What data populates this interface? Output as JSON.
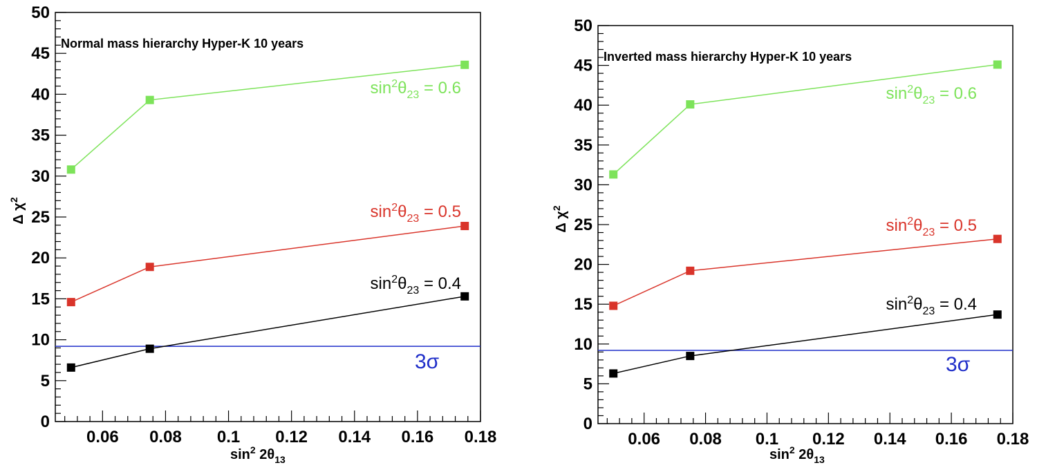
{
  "chart_data": [
    {
      "type": "line",
      "title": "Normal mass hierarchy Hyper-K 10 years",
      "xlabel": {
        "base": "sin",
        "sup": "2",
        "mid": " 2θ",
        "sub": "13"
      },
      "ylabel": {
        "base": "Δ χ",
        "sup": "2"
      },
      "xlim": [
        0.045,
        0.18
      ],
      "ylim": [
        0,
        50
      ],
      "x_ticks": [
        "0.06",
        "0.08",
        "0.1",
        "0.12",
        "0.14",
        "0.16",
        "0.18"
      ],
      "y_ticks": [
        "0",
        "5",
        "10",
        "15",
        "20",
        "25",
        "30",
        "35",
        "40",
        "45",
        "50"
      ],
      "x": [
        0.05,
        0.075,
        0.175
      ],
      "series": [
        {
          "name": "sin²θ23 = 0.6",
          "color": "#7de35a",
          "values": [
            30.8,
            39.3,
            43.6
          ],
          "label": {
            "a": "sin",
            "sup": "2",
            "b": "θ",
            "sub": "23",
            "c": " = 0.6"
          }
        },
        {
          "name": "sin²θ23 = 0.5",
          "color": "#d9342a",
          "values": [
            14.6,
            18.9,
            23.9
          ],
          "label": {
            "a": "sin",
            "sup": "2",
            "b": "θ",
            "sub": "23",
            "c": " = 0.5"
          }
        },
        {
          "name": "sin²θ23 = 0.4",
          "color": "#000000",
          "values": [
            6.6,
            8.9,
            15.3
          ],
          "label": {
            "a": "sin",
            "sup": "2",
            "b": "θ",
            "sub": "23",
            "c": " = 0.4"
          }
        }
      ],
      "hline": {
        "value": 9.2,
        "color": "#1f2ec9",
        "label": "3σ"
      }
    },
    {
      "type": "line",
      "title": "Inverted mass hierarchy Hyper-K 10 years",
      "xlabel": {
        "base": "sin",
        "sup": "2",
        "mid": " 2θ",
        "sub": "13"
      },
      "ylabel": {
        "base": "Δ χ",
        "sup": "2"
      },
      "xlim": [
        0.045,
        0.18
      ],
      "ylim": [
        0,
        50
      ],
      "x_ticks": [
        "0.06",
        "0.08",
        "0.1",
        "0.12",
        "0.14",
        "0.16",
        "0.18"
      ],
      "y_ticks": [
        "0",
        "5",
        "10",
        "15",
        "20",
        "25",
        "30",
        "35",
        "40",
        "45",
        "50"
      ],
      "x": [
        0.05,
        0.075,
        0.175
      ],
      "series": [
        {
          "name": "sin²θ23 = 0.6",
          "color": "#7de35a",
          "values": [
            31.3,
            40.1,
            45.1
          ],
          "label": {
            "a": "sin",
            "sup": "2",
            "b": "θ",
            "sub": "23",
            "c": " = 0.6"
          }
        },
        {
          "name": "sin²θ23 = 0.5",
          "color": "#d9342a",
          "values": [
            14.8,
            19.2,
            23.2
          ],
          "label": {
            "a": "sin",
            "sup": "2",
            "b": "θ",
            "sub": "23",
            "c": " = 0.5"
          }
        },
        {
          "name": "sin²θ23 = 0.4",
          "color": "#000000",
          "values": [
            6.3,
            8.5,
            13.7
          ],
          "label": {
            "a": "sin",
            "sup": "2",
            "b": "θ",
            "sub": "23",
            "c": " = 0.4"
          }
        }
      ],
      "hline": {
        "value": 9.2,
        "color": "#1f2ec9",
        "label": "3σ"
      }
    }
  ]
}
